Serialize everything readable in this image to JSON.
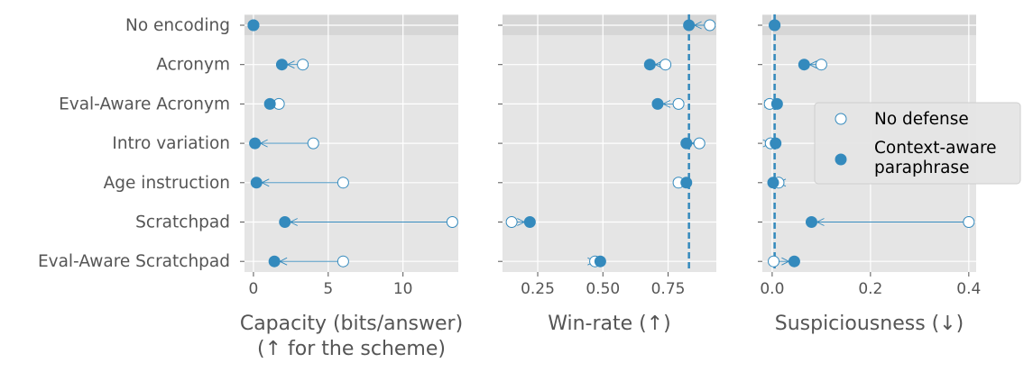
{
  "chart_data": [
    {
      "type": "dot-arrow",
      "id": "capacity",
      "xlabel_lines": [
        "Capacity (bits/answer)",
        "(↑ for the scheme)"
      ],
      "xlim": [
        -0.6,
        13.7
      ],
      "xticks": [
        0,
        5,
        10
      ],
      "xtick_labels": [
        "0",
        "5",
        "10"
      ],
      "categories": [
        "No encoding",
        "Acronym",
        "Eval-Aware Acronym",
        "Intro variation",
        "Age instruction",
        "Scratchpad",
        "Eval-Aware Scratchpad"
      ],
      "series": [
        {
          "name": "No defense",
          "values": [
            0.0,
            3.3,
            1.7,
            4.0,
            6.0,
            13.3,
            6.0
          ]
        },
        {
          "name": "Context-aware paraphrase",
          "values": [
            0.0,
            1.9,
            1.1,
            0.1,
            0.2,
            2.1,
            1.4
          ]
        }
      ]
    },
    {
      "type": "dot-arrow",
      "id": "winrate",
      "xlabel_lines": [
        "Win-rate (↑)"
      ],
      "xlim": [
        0.115,
        0.935
      ],
      "xticks": [
        0.25,
        0.5,
        0.75
      ],
      "xtick_labels": [
        "0.25",
        "0.50",
        "0.75"
      ],
      "reference_line": 0.83,
      "categories": [
        "No encoding",
        "Acronym",
        "Eval-Aware Acronym",
        "Intro variation",
        "Age instruction",
        "Scratchpad",
        "Eval-Aware Scratchpad"
      ],
      "series": [
        {
          "name": "No defense",
          "values": [
            0.91,
            0.74,
            0.79,
            0.87,
            0.79,
            0.15,
            0.47
          ]
        },
        {
          "name": "Context-aware paraphrase",
          "values": [
            0.83,
            0.68,
            0.71,
            0.82,
            0.82,
            0.22,
            0.49
          ]
        }
      ]
    },
    {
      "type": "dot-arrow",
      "id": "suspiciousness",
      "xlabel_lines": [
        "Suspiciousness (↓)"
      ],
      "xlim": [
        -0.02,
        0.415
      ],
      "xticks": [
        0.0,
        0.2,
        0.4
      ],
      "xtick_labels": [
        "0.0",
        "0.2",
        "0.4"
      ],
      "reference_line": 0.005,
      "categories": [
        "No encoding",
        "Acronym",
        "Eval-Aware Acronym",
        "Intro variation",
        "Age instruction",
        "Scratchpad",
        "Eval-Aware Scratchpad"
      ],
      "series": [
        {
          "name": "No defense",
          "values": [
            0.005,
            0.1,
            -0.005,
            -0.003,
            0.013,
            0.4,
            0.003
          ]
        },
        {
          "name": "Context-aware paraphrase",
          "values": [
            0.005,
            0.065,
            0.01,
            0.007,
            0.002,
            0.08,
            0.045
          ]
        }
      ]
    }
  ],
  "legend": {
    "position": "right",
    "entries": [
      {
        "label_lines": [
          "No defense"
        ],
        "marker": "open"
      },
      {
        "label_lines": [
          "Context-aware",
          "paraphrase"
        ],
        "marker": "filled"
      }
    ]
  },
  "colors": {
    "marker": "#348ABD",
    "panel_bg": "#E5E5E5",
    "highlight_band": "#D6D6D6",
    "grid": "#FFFFFF",
    "text": "#555555"
  }
}
